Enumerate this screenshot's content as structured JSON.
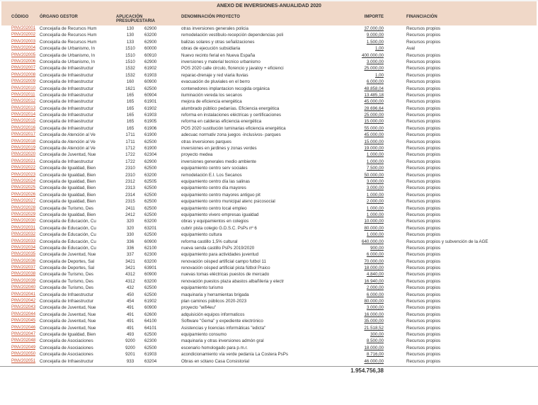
{
  "title": "ANEXO DE INVERSIONES-ANUALIDAD 2020",
  "headers": {
    "codigo": "CÓDIGO",
    "organo": "ÓRGANO GESTOR",
    "app": "APLICACIÓN PRESUPUESTARIA",
    "denom": "DENOMINACIÓN PROYECTO",
    "importe": "IMPORTE",
    "finan": "FINANCIACIÓN"
  },
  "total": "1.954.756,38",
  "rows": [
    {
      "codigo": "PINV202001",
      "organo": "Concejalía de Recursos Hum",
      "app1": "130",
      "app2": "62900",
      "denom": "otras inversiones generales policia",
      "importe": "37.000,00",
      "finan": "Recursos propios"
    },
    {
      "codigo": "PINV202002",
      "organo": "Concejalía de Recursos Hum",
      "app1": "130",
      "app2": "63200",
      "denom": "remodelación vestíbulo-recepción dependencias poli",
      "importe": "9.000,00",
      "finan": "Recursos propios"
    },
    {
      "codigo": "PINV202003",
      "organo": "Concejalía de Recursos Hum",
      "app1": "133",
      "app2": "62900",
      "denom": "balizas solares y otras señalizaciones",
      "importe": "1.500,00",
      "finan": "Recursos propios"
    },
    {
      "codigo": "PINV202004",
      "organo": "Concejalía de Urbanismo, In",
      "app1": "1510",
      "app2": "60000",
      "denom": "obras de ejecución subsidiaria",
      "importe": "1,00",
      "finan": "Aval"
    },
    {
      "codigo": "PINV202005",
      "organo": "Concejalía de Urbanismo, In",
      "app1": "1510",
      "app2": "60910",
      "denom": "Nuevo recinto ferial en Nueva España",
      "importe": "400.000,00",
      "finan": "Recursos propios"
    },
    {
      "codigo": "PINV202006",
      "organo": "Concejalía de Urbanismo, In",
      "app1": "1510",
      "app2": "62900",
      "denom": "inversiones y material tecnico urbanismo",
      "importe": "3.000,00",
      "finan": "Recursos propios"
    },
    {
      "codigo": "PINV202007",
      "organo": "Concejalía de Infraestructur",
      "app1": "1532",
      "app2": "61902",
      "denom": "POS 2020 calle circulo, florencio y javaloy + eficienci",
      "importe": "25.000,00",
      "finan": "Recursos propios"
    },
    {
      "codigo": "PINV202008",
      "organo": "Concejalía de Infraestructur",
      "app1": "1532",
      "app2": "61903",
      "denom": "reparac-drenaje y red viaria lluvias",
      "importe": "1,00",
      "finan": "Recursos propios"
    },
    {
      "codigo": "PINV202009",
      "organo": "Concejalía de Infraestructur",
      "app1": "160",
      "app2": "60900",
      "denom": "evacuación de pluviales en el berro",
      "importe": "6.000,00",
      "finan": "Recursos propios"
    },
    {
      "codigo": "PINV202010",
      "organo": "Concejalía de Infraestructur",
      "app1": "1621",
      "app2": "62500",
      "denom": "contenedores implantacion recogida orgánica",
      "importe": "48.858,04",
      "finan": "Recursos propios"
    },
    {
      "codigo": "PINV202011",
      "organo": "Concejalía de Infraestructur",
      "app1": "165",
      "app2": "60904",
      "denom": "iluminación vereda los secanos",
      "importe": "13.485,18",
      "finan": "Recursos propios"
    },
    {
      "codigo": "PINV202012",
      "organo": "Concejalía de Infraestructur",
      "app1": "165",
      "app2": "61901",
      "denom": "mejora de eficiencia energética",
      "importe": "45.000,00",
      "finan": "Recursos propios"
    },
    {
      "codigo": "PINV202013",
      "organo": "Concejalía de Infraestructur",
      "app1": "165",
      "app2": "61902",
      "denom": "alumbrado público pedanías. Eficiencia energética",
      "importe": "28.696,64",
      "finan": "Recursos propios"
    },
    {
      "codigo": "PINV202014",
      "organo": "Concejalía de Infraestructur",
      "app1": "165",
      "app2": "61903",
      "denom": "reforma en instalaciones eléctricas y certificaciones",
      "importe": "25.000,00",
      "finan": "Recursos propios"
    },
    {
      "codigo": "PINV202015",
      "organo": "Concejalía de Infraestructur",
      "app1": "165",
      "app2": "61905",
      "denom": "reforma en calderas eficiencia energética",
      "importe": "15.000,00",
      "finan": "Recursos propios"
    },
    {
      "codigo": "PINV202016",
      "organo": "Concejalía de Infraestructur",
      "app1": "165",
      "app2": "61906",
      "denom": "POS 2020 sustitución luminarias eficiencia energética",
      "importe": "55.000,00",
      "finan": "Recursos propios"
    },
    {
      "codigo": "PINV202017",
      "organo": "Concejalía de Atención al Ve",
      "app1": "1711",
      "app2": "61900",
      "denom": "adecuac normativ zona juegos -inclusivos- parques",
      "importe": "45.000,00",
      "finan": "Recursos propios"
    },
    {
      "codigo": "PINV202018",
      "organo": "Concejalía de Atención al Ve",
      "app1": "1711",
      "app2": "62500",
      "denom": "otras inversiones parques",
      "importe": "15.000,00",
      "finan": "Recursos propios"
    },
    {
      "codigo": "PINV202019",
      "organo": "Concejalía de Atención al Ve",
      "app1": "1712",
      "app2": "61900",
      "denom": "inversiones en jardines y zonas verdes",
      "importe": "19.000,00",
      "finan": "Recursos propios"
    },
    {
      "codigo": "PINV202020",
      "organo": "Concejalía de Juventud, Nue",
      "app1": "1722",
      "app2": "62304",
      "denom": "proyecto medea",
      "importe": "1.000,00",
      "finan": "Recursos propios"
    },
    {
      "codigo": "PINV202021",
      "organo": "Concejalía de Infraestructur",
      "app1": "1722",
      "app2": "62900",
      "denom": "inversiones generales medio ambiente",
      "importe": "1.000,00",
      "finan": "Recursos propios"
    },
    {
      "codigo": "PINV202022",
      "organo": "Concejalía de Igualdad, Bien",
      "app1": "2310",
      "app2": "62500",
      "denom": "equipamiento centro serv sociales",
      "importe": "7.500,00",
      "finan": "Recursos propios"
    },
    {
      "codigo": "PINV202023",
      "organo": "Concejalía de Igualdad, Bien",
      "app1": "2310",
      "app2": "63200",
      "denom": "remodelación E.I. Los Secanos",
      "importe": "50.000,00",
      "finan": "Recursos propios"
    },
    {
      "codigo": "PINV202024",
      "organo": "Concejalía de Igualdad, Bien",
      "app1": "2312",
      "app2": "62505",
      "denom": "equipamiento centro día las salinas",
      "importe": "3.000,00",
      "finan": "Recursos propios"
    },
    {
      "codigo": "PINV202025",
      "organo": "Concejalía de Igualdad, Bien",
      "app1": "2313",
      "app2": "62500",
      "denom": "equipamiento centro día mayores",
      "importe": "3.000,00",
      "finan": "Recursos propios"
    },
    {
      "codigo": "PINV202026",
      "organo": "Concejalía de Igualdad, Bien",
      "app1": "2314",
      "app2": "62500",
      "denom": "equipamiento centro mayores antiguo pit",
      "importe": "1.000,00",
      "finan": "Recursos propios"
    },
    {
      "codigo": "PINV202027",
      "organo": "Concejalía de Igualdad, Bien",
      "app1": "2315",
      "app2": "62500",
      "denom": "equipamiento centro municipal atenc psicosocial",
      "importe": "2.000,00",
      "finan": "Recursos propios"
    },
    {
      "codigo": "PINV202028",
      "organo": "Concejalía de Turismo, Des",
      "app1": "2411",
      "app2": "62500",
      "denom": "equipamiento centro local empleo",
      "importe": "1.000,00",
      "finan": "Recursos propios"
    },
    {
      "codigo": "PINV202029",
      "organo": "Concejalía de Igualdad, Bien",
      "app1": "2412",
      "app2": "62500",
      "denom": "equipamiento vivero empresas igualdad",
      "importe": "1.000,00",
      "finan": "Recursos propios"
    },
    {
      "codigo": "PINV202030",
      "organo": "Concejalía de Educación, Cu",
      "app1": "320",
      "app2": "63200",
      "denom": "obras y equipamientos en colegios",
      "importe": "10.000,00",
      "finan": "Recursos propios"
    },
    {
      "codigo": "PINV202031",
      "organo": "Concejalía de Educación, Cu",
      "app1": "320",
      "app2": "63201",
      "denom": "cubrir pista colegio G.D.S.C. PsPs nº 6",
      "importe": "80.000,00",
      "finan": "Recursos propios"
    },
    {
      "codigo": "PINV202032",
      "organo": "Concejalía de Educación, Cu",
      "app1": "330",
      "app2": "62500",
      "denom": "equipamiento cultura",
      "importe": "1.000,00",
      "finan": "Recursos propios"
    },
    {
      "codigo": "PINV202033",
      "organo": "Concejalía de Educación, Cu",
      "app1": "336",
      "app2": "60900",
      "denom": "reforma castillo 1,5% cultural",
      "importe": "640.000,00",
      "finan": "Recursos propios y subvención de la AGE"
    },
    {
      "codigo": "PINV202034",
      "organo": "Concejalía de Educación, Cu",
      "app1": "336",
      "app2": "62100",
      "denom": "nueva senda castillo PsPs 2019/2020",
      "importe": "900,00",
      "finan": "Recursos propios"
    },
    {
      "codigo": "PINV202035",
      "organo": "Concejalía de Juventud, Nue",
      "app1": "337",
      "app2": "62300",
      "denom": "equipamiento para actividades juventud",
      "importe": "6.000,00",
      "finan": "Recursos propios"
    },
    {
      "codigo": "PINV202036",
      "organo": "Concejalía de Deportes, Sal",
      "app1": "3421",
      "app2": "63200",
      "denom": "renovación césped artificial campo futbol 11",
      "importe": "70.000,00",
      "finan": "Recursos propios"
    },
    {
      "codigo": "PINV202037",
      "organo": "Concejalía de Deportes, Sal",
      "app1": "3421",
      "app2": "63901",
      "denom": "renovación césped artificial pista fútbol Praico",
      "importe": "18.000,00",
      "finan": "Recursos propios"
    },
    {
      "codigo": "PINV202038",
      "organo": "Concejalía de Turismo, Des",
      "app1": "4312",
      "app2": "60900",
      "denom": "nuevas tomas eléctricas puestos de mercado",
      "importe": "4.840,00",
      "finan": "Recursos propios"
    },
    {
      "codigo": "PINV202039",
      "organo": "Concejalía de Turismo, Des",
      "app1": "4312",
      "app2": "63200",
      "denom": "renovación puestos plaza abastos albañileria y electr",
      "importe": "16.940,00",
      "finan": "Recursos propios"
    },
    {
      "codigo": "PINV202040",
      "organo": "Concejalía de Turismo, Des",
      "app1": "432",
      "app2": "62500",
      "denom": "equipamiento turismo",
      "importe": "2.000,00",
      "finan": "Recursos propios"
    },
    {
      "codigo": "PINV202041",
      "organo": "Concejalía de Infraestructur",
      "app1": "450",
      "app2": "62500",
      "denom": "maquinaria y herramientas brigada",
      "importe": "6.000,00",
      "finan": "Recursos propios"
    },
    {
      "codigo": "PINV202042",
      "organo": "Concejalía de Infraestructur",
      "app1": "454",
      "app2": "61902",
      "denom": "plan caminos públicos 2020-2023",
      "importe": "80.000,00",
      "finan": "Recursos propios"
    },
    {
      "codigo": "PINV202043",
      "organo": "Concejalía de Juventud, Nue",
      "app1": "491",
      "app2": "60900",
      "denom": "proyecto \"wifi4eu\"",
      "importe": "3.000,00",
      "finan": "Recursos propios"
    },
    {
      "codigo": "PINV202044",
      "organo": "Concejalía de Juventud, Nue",
      "app1": "491",
      "app2": "62600",
      "denom": "adquisición equipos informaticos",
      "importe": "16.000,00",
      "finan": "Recursos propios"
    },
    {
      "codigo": "PINV202045",
      "organo": "Concejalía de Juventud, Nue",
      "app1": "491",
      "app2": "64100",
      "denom": "Software \"Gema\" y expediente electrónico",
      "importe": "35.000,00",
      "finan": "Recursos propios"
    },
    {
      "codigo": "PINV202046",
      "organo": "Concejalía de Juventud, Nue",
      "app1": "491",
      "app2": "64101",
      "denom": "Asistencias y licencias informáticas \"edicta\"",
      "importe": "21.518,52",
      "finan": "Recursos propios"
    },
    {
      "codigo": "PINV202047",
      "organo": "Concejalía de Igualdad, Bien",
      "app1": "493",
      "app2": "62500",
      "denom": "equipamiento consumo",
      "importe": "300,00",
      "finan": "Recursos propios"
    },
    {
      "codigo": "PINV202048",
      "organo": "Concejalía de Asociaciones",
      "app1": "9200",
      "app2": "62300",
      "denom": "maquinaria y otras inversiones admón gral",
      "importe": "8.500,00",
      "finan": "Recursos propios"
    },
    {
      "codigo": "PINV202049",
      "organo": "Concejalía de Asociaciones",
      "app1": "9200",
      "app2": "62500",
      "denom": "escenario homologado para p.m.r.",
      "importe": "18.000,00",
      "finan": "Recursos propios"
    },
    {
      "codigo": "PINV202050",
      "organo": "Concejalía de Asociaciones",
      "app1": "9201",
      "app2": "61903",
      "denom": "acondicionamiento vía verde pedanía La Costera PsPs",
      "importe": "8.716,00",
      "finan": "Recursos propios"
    },
    {
      "codigo": "PINV202051",
      "organo": "Concejalía de Infraestructur",
      "app1": "933",
      "app2": "63204",
      "denom": "Obras en sótano Casa Consistorial",
      "importe": "46.000,00",
      "finan": "Recursos propios"
    }
  ]
}
